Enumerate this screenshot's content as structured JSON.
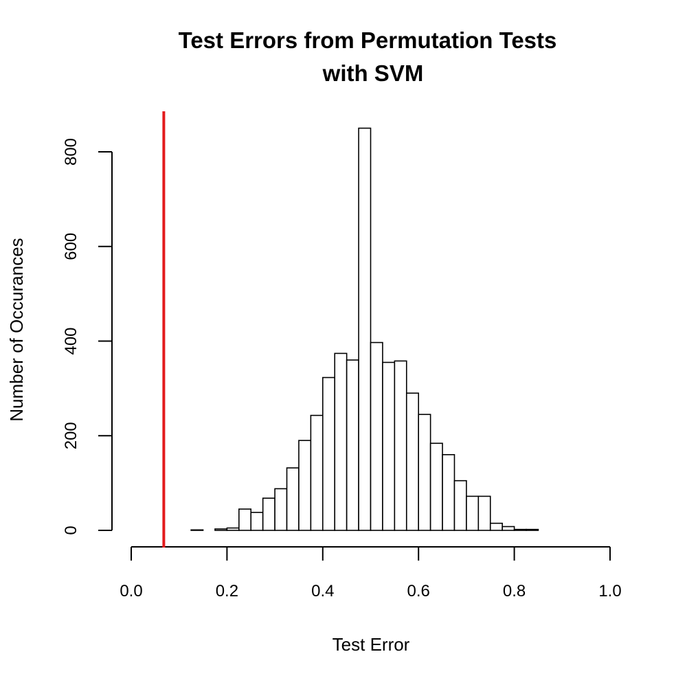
{
  "chart_data": {
    "type": "bar",
    "title_line1": "Test Errors from Permutation Tests",
    "title_line2": "with SVM",
    "xlabel": "Test Error",
    "ylabel": "Number of Occurances",
    "xlim": [
      0.0,
      1.0
    ],
    "ylim": [
      0,
      850
    ],
    "xticks": [
      "0.0",
      "0.2",
      "0.4",
      "0.6",
      "0.8",
      "1.0"
    ],
    "xtick_values": [
      0.0,
      0.2,
      0.4,
      0.6,
      0.8,
      1.0
    ],
    "yticks": [
      "0",
      "200",
      "400",
      "600",
      "800"
    ],
    "ytick_values": [
      0,
      200,
      400,
      600,
      800
    ],
    "bin_width": 0.025,
    "bin_start": 0.0,
    "values": [
      0,
      0,
      0,
      0,
      0,
      1,
      0,
      3,
      5,
      45,
      38,
      68,
      88,
      132,
      190,
      243,
      323,
      374,
      360,
      850,
      397,
      355,
      358,
      290,
      245,
      184,
      160,
      105,
      72,
      72,
      15,
      8,
      2,
      2,
      0,
      0,
      0,
      0,
      0,
      0
    ],
    "reference_line": {
      "x": 0.068,
      "color": "#e31a1c"
    },
    "bar_fill": "#ffffff",
    "bar_stroke": "#000000",
    "grid": false,
    "legend": "none"
  }
}
